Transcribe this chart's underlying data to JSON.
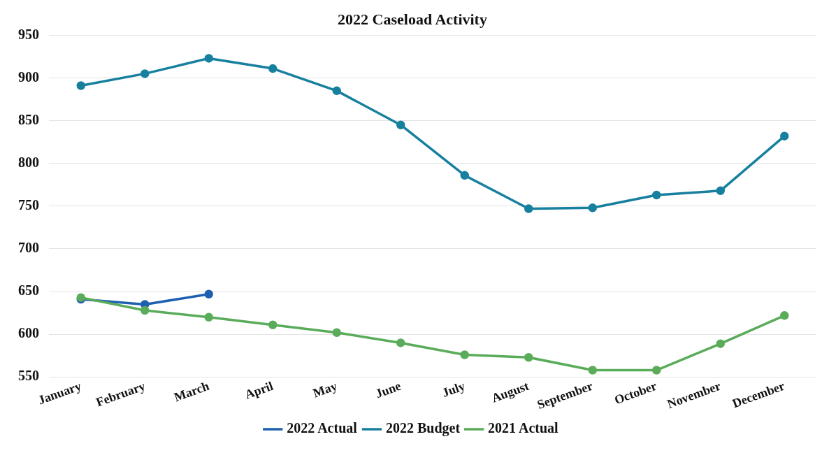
{
  "chart_data": {
    "type": "line",
    "title": "2022 Caseload Activity",
    "categories": [
      "January",
      "February",
      "March",
      "April",
      "May",
      "June",
      "July",
      "August",
      "September",
      "October",
      "November",
      "December"
    ],
    "series": [
      {
        "name": "2022 Actual",
        "color": "#1f5fb0",
        "values": [
          641,
          635,
          647,
          null,
          null,
          null,
          null,
          null,
          null,
          null,
          null,
          null
        ]
      },
      {
        "name": "2022 Budget",
        "color": "#17809f",
        "values": [
          891,
          905,
          923,
          911,
          885,
          845,
          786,
          747,
          748,
          763,
          768,
          832
        ]
      },
      {
        "name": "2021 Actual",
        "color": "#5aac5a",
        "values": [
          643,
          628,
          620,
          611,
          602,
          590,
          576,
          573,
          558,
          558,
          589,
          622
        ]
      }
    ],
    "ylim": [
      550,
      950
    ],
    "yticks": [
      550,
      600,
      650,
      700,
      750,
      800,
      850,
      900,
      950
    ],
    "grid": "y",
    "legend": "bottom",
    "marker": "circle",
    "line_style": "solid"
  }
}
